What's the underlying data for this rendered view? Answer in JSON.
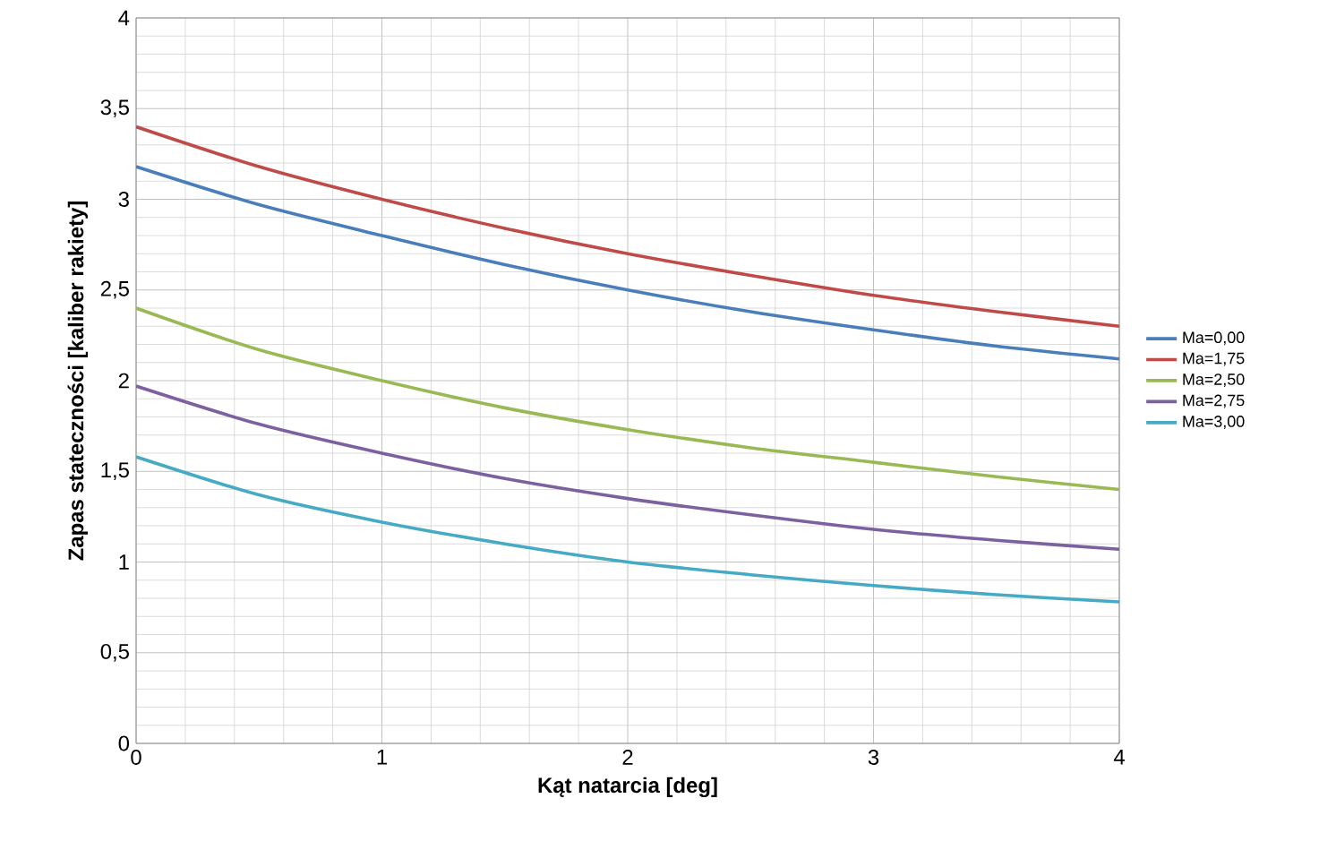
{
  "chart_data": {
    "type": "line",
    "xlabel": "Kąt natarcia [deg]",
    "ylabel": "Zapas stateczności [kaliber rakiety]",
    "x": [
      0,
      0.5,
      1,
      1.5,
      2,
      2.5,
      3,
      3.5,
      4
    ],
    "series": [
      {
        "name": "Ma=0,00",
        "color": "#4a7ebb",
        "values": [
          3.18,
          2.97,
          2.8,
          2.64,
          2.5,
          2.38,
          2.28,
          2.19,
          2.12
        ]
      },
      {
        "name": "Ma=1,75",
        "color": "#be4b48",
        "values": [
          3.4,
          3.18,
          3.0,
          2.84,
          2.7,
          2.58,
          2.47,
          2.38,
          2.3
        ]
      },
      {
        "name": "Ma=2,50",
        "color": "#98b954",
        "values": [
          2.4,
          2.17,
          2.0,
          1.85,
          1.73,
          1.63,
          1.55,
          1.47,
          1.4
        ]
      },
      {
        "name": "Ma=2,75",
        "color": "#7d60a0",
        "values": [
          1.97,
          1.76,
          1.6,
          1.46,
          1.35,
          1.26,
          1.18,
          1.12,
          1.07
        ]
      },
      {
        "name": "Ma=3,00",
        "color": "#46aac5",
        "values": [
          1.58,
          1.37,
          1.22,
          1.1,
          1.0,
          0.93,
          0.87,
          0.82,
          0.78
        ]
      }
    ],
    "xlim": [
      0,
      4
    ],
    "ylim": [
      0,
      4
    ],
    "xticks": [
      0,
      1,
      2,
      3,
      4
    ],
    "yticks": [
      0,
      {
        "value": 0.5,
        "label": "0,5"
      },
      1,
      {
        "value": 1.5,
        "label": "1,5"
      },
      2,
      {
        "value": 2.5,
        "label": "2,5"
      },
      3,
      {
        "value": 3.5,
        "label": "3,5"
      },
      4
    ],
    "grid": true,
    "legend": "right",
    "marker": "none",
    "line_style": "solid"
  }
}
